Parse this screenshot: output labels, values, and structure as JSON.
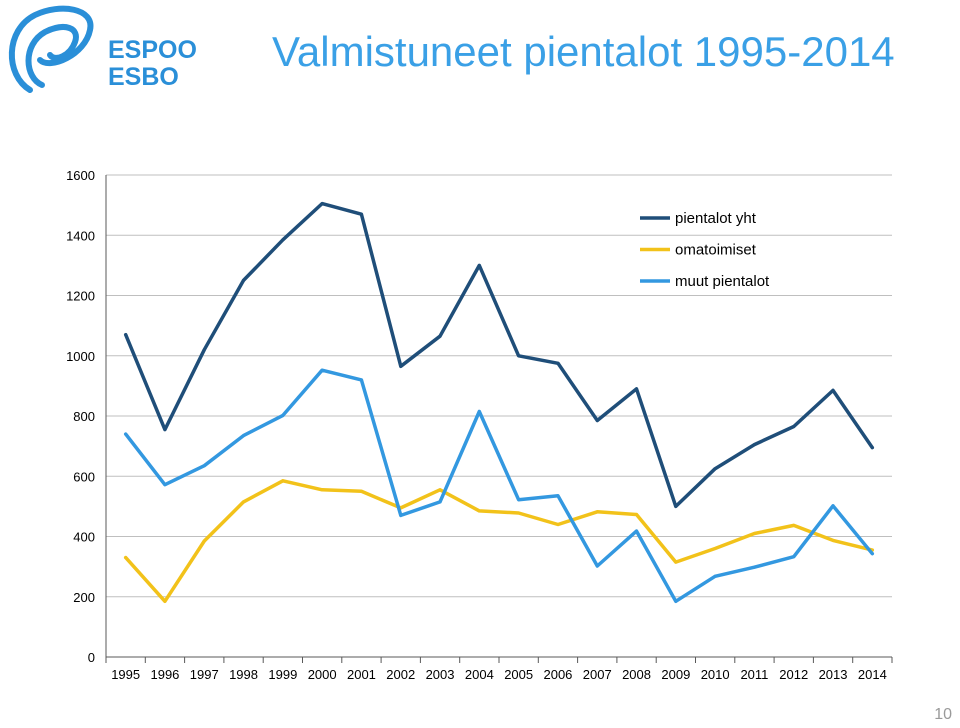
{
  "slide": {
    "title": "Valmistuneet pientalot 1995-2014",
    "page_number": "10",
    "logo": {
      "line1": "ESPOO",
      "line2": "ESBO"
    }
  },
  "colors": {
    "title": "#3aa0e6",
    "logo": "#2a8fd8",
    "grid": "#bfbfbf",
    "axis": "#595959"
  },
  "chart_data": {
    "type": "line",
    "title": "",
    "xlabel": "",
    "ylabel": "",
    "ylim": [
      0,
      1600
    ],
    "yticks": [
      0,
      200,
      400,
      600,
      800,
      1000,
      1200,
      1400,
      1600
    ],
    "grid": true,
    "legend_position": "top-right",
    "categories": [
      "1995",
      "1996",
      "1997",
      "1998",
      "1999",
      "2000",
      "2001",
      "2002",
      "2003",
      "2004",
      "2005",
      "2006",
      "2007",
      "2008",
      "2009",
      "2010",
      "2011",
      "2012",
      "2013",
      "2014"
    ],
    "series": [
      {
        "name": "pientalot yht",
        "color": "#1f4e79",
        "values": [
          1070,
          755,
          1020,
          1250,
          1385,
          1505,
          1470,
          965,
          1065,
          1300,
          1000,
          975,
          785,
          890,
          500,
          625,
          705,
          765,
          885,
          695
        ]
      },
      {
        "name": "omatoimiset",
        "color": "#f2c21a",
        "values": [
          330,
          185,
          385,
          515,
          585,
          555,
          550,
          495,
          555,
          485,
          478,
          440,
          482,
          473,
          315,
          360,
          410,
          437,
          387,
          355
        ]
      },
      {
        "name": "muut pientalot",
        "color": "#3398e0",
        "values": [
          740,
          572,
          635,
          735,
          802,
          952,
          920,
          470,
          515,
          815,
          522,
          535,
          302,
          418,
          185,
          268,
          298,
          333,
          502,
          343
        ]
      }
    ]
  }
}
